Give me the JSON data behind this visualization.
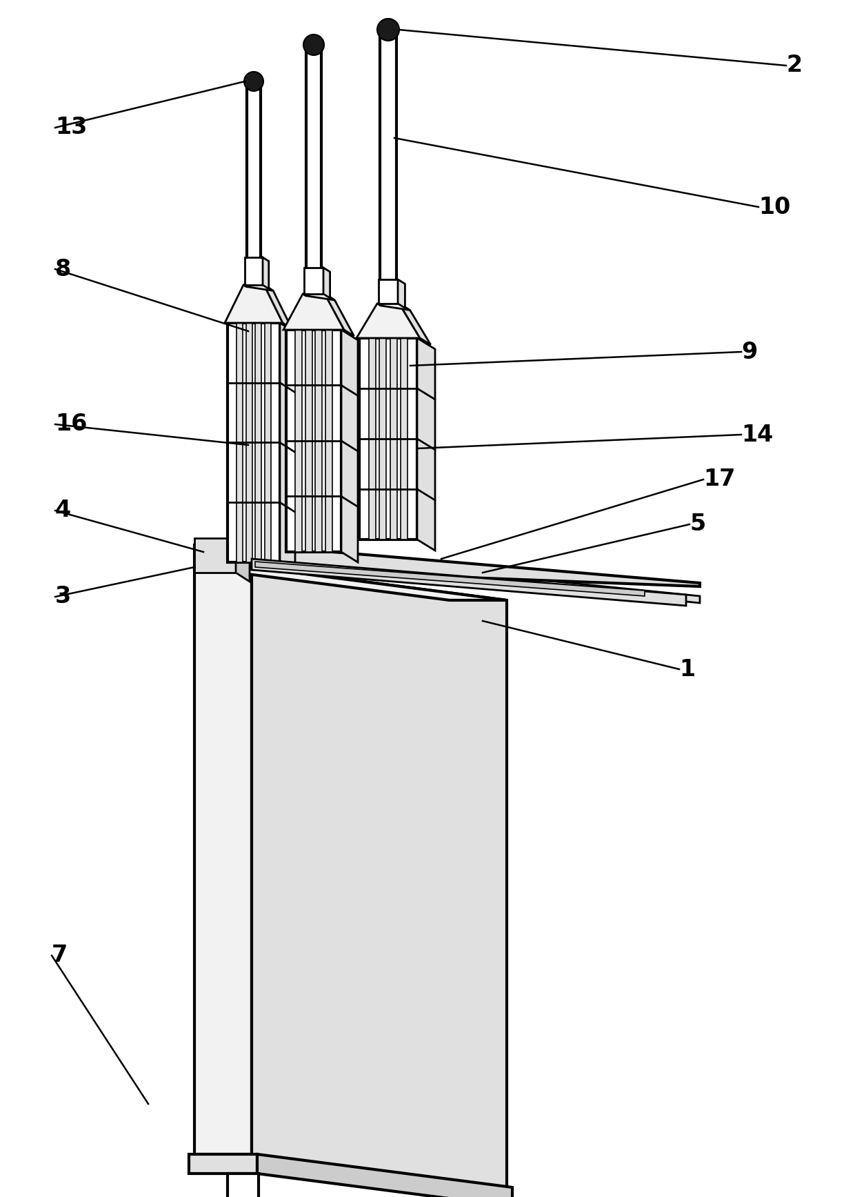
{
  "bg": "#ffffff",
  "lc": "#000000",
  "lw": 2.0,
  "blw": 3.0,
  "label_fs": 24,
  "label_fw": "bold",
  "gray_light": "#f2f2f2",
  "gray_mid": "#e0e0e0",
  "gray_dark": "#cccccc",
  "gray_very_dark": "#aaaaaa"
}
